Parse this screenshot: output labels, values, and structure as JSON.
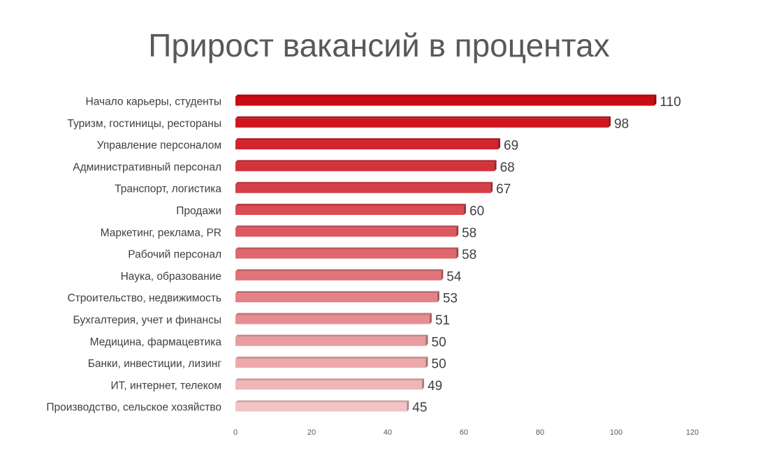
{
  "chart_data": {
    "type": "bar",
    "orientation": "horizontal",
    "title": "Прирост вакансий в процентах",
    "categories": [
      "Начало карьеры, студенты",
      "Туризм, гостиницы, рестораны",
      "Управление персоналом",
      "Административный персонал",
      "Транспорт, логистика",
      "Продажи",
      "Маркетинг, реклама, PR",
      "Рабочий персонал",
      "Наука, образование",
      "Строительство, недвижимость",
      "Бухгалтерия, учет и финансы",
      "Медицина, фармацевтика",
      "Банки, инвестиции, лизинг",
      "ИТ, интернет, телеком",
      "Производство, сельское хозяйство"
    ],
    "values": [
      110,
      98,
      69,
      68,
      67,
      60,
      58,
      58,
      54,
      53,
      51,
      50,
      50,
      49,
      45
    ],
    "xlim": [
      0,
      120
    ],
    "xticks": [
      0,
      20,
      40,
      60,
      80,
      100,
      120
    ],
    "xlabel": "",
    "ylabel": "",
    "grid": false,
    "legend": "none",
    "colors": {
      "bar_dark": "#cc0a14",
      "bar_light": "#f2c3c5",
      "text": "#404040",
      "title": "#595959"
    }
  }
}
